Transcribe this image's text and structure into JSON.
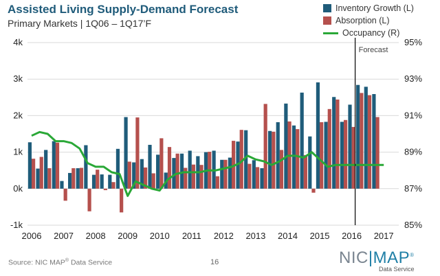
{
  "header": {
    "title": "Assisted Living Supply-Demand Forecast",
    "subtitle": "Primary Markets | 1Q06 – 1Q17’F"
  },
  "footer": {
    "source": "Source: NIC MAP",
    "source_suffix": " Data Service",
    "registered": "®",
    "page_number": "16",
    "logo_left": "NIC",
    "logo_sep": "|",
    "logo_right": "MAP",
    "logo_mark": "®",
    "logo_sub": "Data Service"
  },
  "colors": {
    "inventory": "#1f5c7a",
    "absorption": "#b5504d",
    "occupancy": "#2aa837",
    "forecast_line": "#111111",
    "grid": "#d9d9d9"
  },
  "chart_data": {
    "type": "bar",
    "title": "Assisted Living Supply-Demand Forecast",
    "subtitle": "Primary Markets | 1Q06 – 1Q17’F",
    "x": [
      "1Q06",
      "2Q06",
      "3Q06",
      "4Q06",
      "1Q07",
      "2Q07",
      "3Q07",
      "4Q07",
      "1Q08",
      "2Q08",
      "3Q08",
      "4Q08",
      "1Q09",
      "2Q09",
      "3Q09",
      "4Q09",
      "1Q10",
      "2Q10",
      "3Q10",
      "4Q10",
      "1Q11",
      "2Q11",
      "3Q11",
      "4Q11",
      "1Q12",
      "2Q12",
      "3Q12",
      "4Q12",
      "1Q13",
      "2Q13",
      "3Q13",
      "4Q13",
      "1Q14",
      "2Q14",
      "3Q14",
      "4Q14",
      "1Q15",
      "2Q15",
      "3Q15",
      "4Q15",
      "1Q16",
      "2Q16",
      "3Q16",
      "4Q16",
      "1Q17"
    ],
    "x_tick_labels": [
      "2006",
      "2007",
      "2008",
      "2009",
      "2010",
      "2011",
      "2012",
      "2013",
      "2014",
      "2015",
      "2016",
      "2017"
    ],
    "series": [
      {
        "name": "Inventory Growth (L)",
        "axis": "left",
        "kind": "bar",
        "values": [
          1270,
          550,
          1060,
          1300,
          210,
          430,
          560,
          1190,
          380,
          390,
          380,
          1090,
          1960,
          720,
          810,
          1200,
          930,
          440,
          840,
          960,
          1040,
          890,
          1000,
          1040,
          790,
          850,
          1290,
          1600,
          780,
          560,
          1580,
          1820,
          2330,
          1730,
          2630,
          1430,
          2910,
          1830,
          2510,
          1830,
          2300,
          2840,
          2790,
          2590,
          null
        ]
      },
      {
        "name": "Absorption (L)",
        "axis": "left",
        "kind": "bar",
        "values": [
          820,
          870,
          560,
          1260,
          -330,
          560,
          570,
          -620,
          520,
          -40,
          180,
          -650,
          740,
          1950,
          580,
          420,
          1380,
          1140,
          960,
          570,
          660,
          650,
          1010,
          340,
          790,
          1310,
          1610,
          680,
          590,
          2320,
          1560,
          1060,
          1840,
          1630,
          920,
          -110,
          1820,
          2180,
          2440,
          1880,
          1690,
          2620,
          2560,
          1960,
          null
        ]
      },
      {
        "name": "Occupancy (R)",
        "axis": "right",
        "kind": "line",
        "values": [
          89.9,
          90.1,
          90.0,
          89.6,
          89.6,
          89.5,
          89.2,
          88.4,
          88.2,
          88.2,
          87.9,
          87.8,
          86.6,
          87.4,
          87.2,
          87.0,
          86.9,
          87.5,
          87.8,
          87.9,
          87.9,
          87.9,
          88.0,
          88.0,
          88.1,
          88.2,
          88.4,
          88.8,
          88.6,
          88.5,
          88.3,
          88.5,
          88.8,
          88.8,
          88.7,
          89.0,
          88.6,
          88.2,
          88.3,
          88.3,
          88.3,
          88.3,
          88.3,
          88.3,
          88.3
        ]
      }
    ],
    "y_left": {
      "ticks": [
        "-1k",
        "0k",
        "1k",
        "2k",
        "3k",
        "4k"
      ],
      "range": [
        -1000,
        4000
      ]
    },
    "y_right": {
      "ticks": [
        "85%",
        "87%",
        "89%",
        "91%",
        "93%",
        "95%"
      ],
      "range": [
        85,
        95
      ]
    },
    "annotations": [
      {
        "text": "Forecast",
        "at": "1Q16"
      }
    ],
    "grid": "horizontal",
    "legend_position": "top-right"
  }
}
